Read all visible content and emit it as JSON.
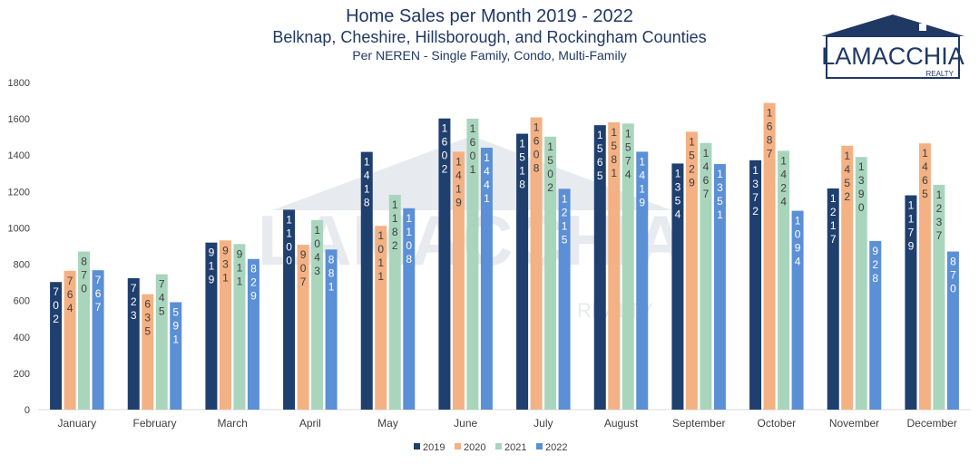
{
  "header": {
    "title": "Home Sales per Month 2019 - 2022",
    "subtitle": "Belknap, Cheshire, Hillsborough, and Rockingham Counties",
    "note": "Per NEREN - Single Family, Condo, Multi-Family"
  },
  "logo": {
    "name": "LAMACCHIA",
    "tagline": "REALTY",
    "icon": "house-roof-icon"
  },
  "watermark": {
    "name": "LAMACCHIA",
    "tagline": "REALTY"
  },
  "chart_data": {
    "type": "bar",
    "title": "Home Sales per Month 2019 - 2022",
    "subtitle": "Belknap, Cheshire, Hillsborough, and Rockingham Counties",
    "note": "Per NEREN - Single Family, Condo, Multi-Family",
    "categories": [
      "January",
      "February",
      "March",
      "April",
      "May",
      "June",
      "July",
      "August",
      "September",
      "October",
      "November",
      "December"
    ],
    "series": [
      {
        "name": "2019",
        "color": "#1f3f6e",
        "values": [
          702,
          723,
          919,
          1100,
          1418,
          1602,
          1518,
          1565,
          1354,
          1372,
          1217,
          1179
        ]
      },
      {
        "name": "2020",
        "color": "#f4b183",
        "values": [
          764,
          635,
          931,
          907,
          1011,
          1419,
          1608,
          1581,
          1529,
          1687,
          1452,
          1465
        ]
      },
      {
        "name": "2021",
        "color": "#a9d5bd",
        "values": [
          870,
          745,
          911,
          1043,
          1182,
          1601,
          1502,
          1574,
          1467,
          1424,
          1390,
          1237
        ]
      },
      {
        "name": "2022",
        "color": "#5b8fd6",
        "values": [
          767,
          591,
          829,
          881,
          1108,
          1441,
          1215,
          1419,
          1351,
          1094,
          928,
          870
        ]
      }
    ],
    "ylim": [
      0,
      1800
    ],
    "yticks": [
      0,
      200,
      400,
      600,
      800,
      1000,
      1200,
      1400,
      1600,
      1800
    ],
    "xlabel": "",
    "ylabel": "",
    "legend": "bottom",
    "grid": false,
    "data_labels": "vertical digits inside bars"
  }
}
